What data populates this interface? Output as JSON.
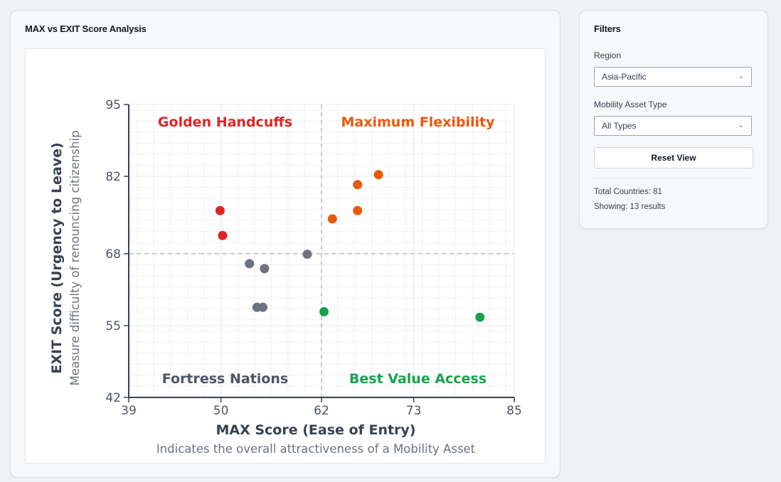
{
  "chart_panel": {
    "title": "MAX vs EXIT Score Analysis"
  },
  "filters": {
    "title": "Filters",
    "region_label": "Region",
    "region_value": "Asia-Pacific",
    "asset_label": "Mobility Asset Type",
    "asset_value": "All Types",
    "reset_label": "Reset View",
    "total_label": "Total Countries: 81",
    "showing_label": "Showing: 13 results"
  },
  "colors": {
    "red": "#dc2626",
    "orange": "#ea580c",
    "gray": "#6b7280",
    "green": "#16a34a"
  },
  "chart_data": {
    "type": "scatter",
    "xlabel": "MAX Score (Ease of Entry)",
    "xsublabel": "Indicates the overall attractiveness of a Mobility Asset",
    "ylabel": "EXIT Score (Urgency to Leave)",
    "ysublabel": "Measure difficulty of renouncing citizenship",
    "xlim": [
      39,
      85
    ],
    "ylim": [
      42,
      95
    ],
    "xticks": [
      39,
      50,
      62,
      73,
      85
    ],
    "yticks": [
      42,
      55,
      68,
      82,
      95
    ],
    "x_divider": 62,
    "y_divider": 68,
    "quadrants": [
      {
        "name": "Golden Handcuffs",
        "color": "#dc2626",
        "pos": "top-left"
      },
      {
        "name": "Maximum Flexibility",
        "color": "#ea580c",
        "pos": "top-right"
      },
      {
        "name": "Fortress Nations",
        "color": "#4b5563",
        "pos": "bottom-left"
      },
      {
        "name": "Best Value Access",
        "color": "#16a34a",
        "pos": "bottom-right"
      }
    ],
    "series": [
      {
        "name": "Golden Handcuffs",
        "color": "#dc2626",
        "points": [
          [
            49.9,
            75.8
          ],
          [
            50.2,
            71.3
          ]
        ]
      },
      {
        "name": "Maximum Flexibility",
        "color": "#ea580c",
        "points": [
          [
            68.8,
            82.3
          ],
          [
            66.3,
            80.5
          ],
          [
            66.3,
            75.8
          ],
          [
            63.3,
            74.3
          ]
        ]
      },
      {
        "name": "Fortress Nations",
        "color": "#6b7280",
        "points": [
          [
            60.3,
            67.9
          ],
          [
            53.4,
            66.2
          ],
          [
            55.2,
            65.3
          ],
          [
            54.3,
            58.3
          ],
          [
            55.0,
            58.3
          ]
        ]
      },
      {
        "name": "Best Value Access",
        "color": "#16a34a",
        "points": [
          [
            62.3,
            57.5
          ],
          [
            80.9,
            56.5
          ]
        ]
      }
    ]
  }
}
